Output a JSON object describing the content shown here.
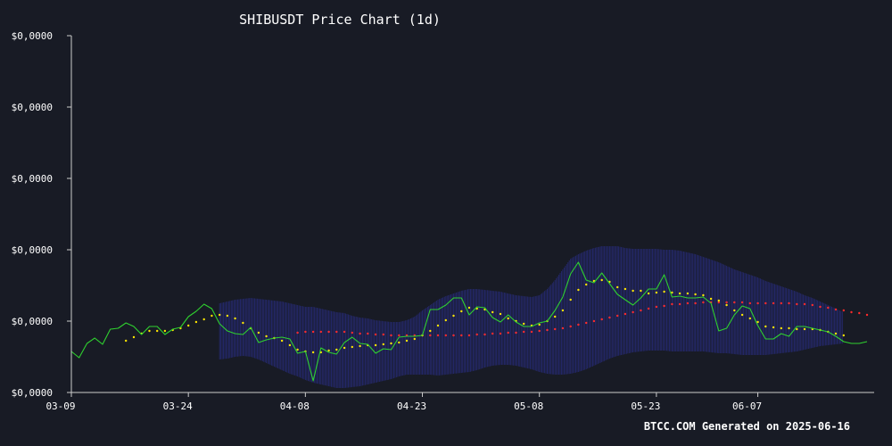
{
  "chart_data": {
    "type": "line",
    "title": "SHIBUSDT Price Chart (1d)",
    "footer": "BTCC.COM Generated on 2025-06-16",
    "xlabel": "",
    "ylabel": "",
    "x_ticks": [
      "03-09",
      "03-24",
      "04-08",
      "04-23",
      "05-08",
      "05-23",
      "06-07"
    ],
    "x_tick_indices": [
      0,
      15,
      30,
      45,
      60,
      75,
      88
    ],
    "y_tick_labels": [
      "$0,0000",
      "$0,0000",
      "$0,0000",
      "$0,0000",
      "$0,0000",
      "$0,0000"
    ],
    "y_ticks": [
      1.13e-05,
      1.21e-05,
      1.29e-05,
      1.37e-05,
      1.45e-05,
      1.53e-05
    ],
    "ylim": [
      1.13e-05,
      1.53e-05
    ],
    "grid": false,
    "colors": {
      "background": "#181b25",
      "price": "#2fd12f",
      "short_ma": "#ffe600",
      "long_ma": "#ff2b2b",
      "band": "#2a2f86",
      "axis": "#cccccc",
      "text": "#ffffff"
    },
    "series": [
      {
        "key": "price",
        "values": [
          1.176e-05,
          1.169e-05,
          1.185e-05,
          1.191e-05,
          1.184e-05,
          1.201e-05,
          1.202e-05,
          1.208e-05,
          1.204e-05,
          1.195e-05,
          1.204e-05,
          1.204e-05,
          1.195e-05,
          1.201e-05,
          1.203e-05,
          1.215e-05,
          1.221e-05,
          1.229e-05,
          1.224e-05,
          1.207e-05,
          1.199e-05,
          1.196e-05,
          1.195e-05,
          1.203e-05,
          1.186e-05,
          1.189e-05,
          1.191e-05,
          1.192e-05,
          1.19e-05,
          1.174e-05,
          1.176e-05,
          1.143e-05,
          1.18e-05,
          1.175e-05,
          1.173e-05,
          1.186e-05,
          1.192e-05,
          1.185e-05,
          1.184e-05,
          1.174e-05,
          1.179e-05,
          1.178e-05,
          1.192e-05,
          1.193e-05,
          1.193e-05,
          1.194e-05,
          1.223e-05,
          1.223e-05,
          1.228e-05,
          1.236e-05,
          1.236e-05,
          1.217e-05,
          1.226e-05,
          1.225e-05,
          1.214e-05,
          1.209e-05,
          1.217e-05,
          1.209e-05,
          1.204e-05,
          1.204e-05,
          1.208e-05,
          1.21e-05,
          1.222e-05,
          1.237e-05,
          1.263e-05,
          1.276e-05,
          1.256e-05,
          1.253e-05,
          1.264e-05,
          1.252e-05,
          1.24e-05,
          1.234e-05,
          1.228e-05,
          1.236e-05,
          1.246e-05,
          1.246e-05,
          1.262e-05,
          1.237e-05,
          1.238e-05,
          1.236e-05,
          1.236e-05,
          1.237e-05,
          1.23e-05,
          1.199e-05,
          1.202e-05,
          1.217e-05,
          1.227e-05,
          1.224e-05,
          1.205e-05,
          1.19e-05,
          1.19e-05,
          1.196e-05,
          1.193e-05,
          1.204e-05,
          1.204e-05,
          1.202e-05,
          1.2e-05,
          1.198e-05,
          1.193e-05,
          1.187e-05,
          1.185e-05,
          1.185e-05,
          1.187e-05
        ]
      },
      {
        "key": "short_ma",
        "values": [
          null,
          null,
          null,
          null,
          null,
          null,
          null,
          1.188e-05,
          1.192e-05,
          1.196e-05,
          1.199e-05,
          1.199e-05,
          1.199e-05,
          1.2e-05,
          1.202e-05,
          1.205e-05,
          1.209e-05,
          1.212e-05,
          1.216e-05,
          1.217e-05,
          1.216e-05,
          1.213e-05,
          1.208e-05,
          1.202e-05,
          1.197e-05,
          1.193e-05,
          1.191e-05,
          1.188e-05,
          1.183e-05,
          1.178e-05,
          1.176e-05,
          1.175e-05,
          1.175e-05,
          1.177e-05,
          1.178e-05,
          1.18e-05,
          1.181e-05,
          1.182e-05,
          1.183e-05,
          1.183e-05,
          1.184e-05,
          1.185e-05,
          1.186e-05,
          1.188e-05,
          1.19e-05,
          1.194e-05,
          1.199e-05,
          1.205e-05,
          1.211e-05,
          1.216e-05,
          1.221e-05,
          1.225e-05,
          1.224e-05,
          1.223e-05,
          1.22e-05,
          1.218e-05,
          1.213e-05,
          1.21e-05,
          1.207e-05,
          1.205e-05,
          1.206e-05,
          1.21e-05,
          1.215e-05,
          1.222e-05,
          1.234e-05,
          1.245e-05,
          1.251e-05,
          1.255e-05,
          1.256e-05,
          1.254e-05,
          1.248e-05,
          1.246e-05,
          1.244e-05,
          1.244e-05,
          1.241e-05,
          1.242e-05,
          1.243e-05,
          1.242e-05,
          1.241e-05,
          1.241e-05,
          1.24e-05,
          1.239e-05,
          1.235e-05,
          1.233e-05,
          1.228e-05,
          1.222e-05,
          1.217e-05,
          1.213e-05,
          1.209e-05,
          1.204e-05,
          1.203e-05,
          1.202e-05,
          1.202e-05,
          1.201e-05,
          1.201e-05,
          1.201e-05,
          1.2e-05,
          1.198e-05,
          1.196e-05,
          1.194e-05
        ]
      },
      {
        "key": "long_ma",
        "values": [
          null,
          null,
          null,
          null,
          null,
          null,
          null,
          null,
          null,
          null,
          null,
          null,
          null,
          null,
          null,
          null,
          null,
          null,
          null,
          null,
          null,
          null,
          null,
          null,
          null,
          null,
          null,
          null,
          null,
          1.197e-05,
          1.198e-05,
          1.198e-05,
          1.198e-05,
          1.198e-05,
          1.198e-05,
          1.198e-05,
          1.197e-05,
          1.196e-05,
          1.196e-05,
          1.195e-05,
          1.195e-05,
          1.194e-05,
          1.194e-05,
          1.194e-05,
          1.194e-05,
          1.194e-05,
          1.194e-05,
          1.194e-05,
          1.194e-05,
          1.194e-05,
          1.194e-05,
          1.194e-05,
          1.195e-05,
          1.195e-05,
          1.196e-05,
          1.196e-05,
          1.197e-05,
          1.197e-05,
          1.198e-05,
          1.198e-05,
          1.199e-05,
          1.2e-05,
          1.201e-05,
          1.202e-05,
          1.204e-05,
          1.206e-05,
          1.208e-05,
          1.21e-05,
          1.212e-05,
          1.214e-05,
          1.216e-05,
          1.218e-05,
          1.22e-05,
          1.222e-05,
          1.224e-05,
          1.226e-05,
          1.227e-05,
          1.229e-05,
          1.229e-05,
          1.23e-05,
          1.23e-05,
          1.231e-05,
          1.231e-05,
          1.231e-05,
          1.231e-05,
          1.231e-05,
          1.231e-05,
          1.23e-05,
          1.23e-05,
          1.23e-05,
          1.23e-05,
          1.23e-05,
          1.23e-05,
          1.229e-05,
          1.229e-05,
          1.228e-05,
          1.226e-05,
          1.225e-05,
          1.223e-05,
          1.222e-05,
          1.22e-05,
          1.219e-05,
          1.217e-05
        ]
      },
      {
        "key": "band_upper",
        "values": [
          null,
          null,
          null,
          null,
          null,
          null,
          null,
          null,
          null,
          null,
          null,
          null,
          null,
          null,
          null,
          null,
          null,
          null,
          null,
          1.23e-05,
          1.232e-05,
          1.234e-05,
          1.235e-05,
          1.236e-05,
          1.235e-05,
          1.234e-05,
          1.233e-05,
          1.232e-05,
          1.23e-05,
          1.228e-05,
          1.226e-05,
          1.226e-05,
          1.224e-05,
          1.222e-05,
          1.22e-05,
          1.219e-05,
          1.216e-05,
          1.214e-05,
          1.213e-05,
          1.211e-05,
          1.21e-05,
          1.209e-05,
          1.209e-05,
          1.211e-05,
          1.215e-05,
          1.222e-05,
          1.228e-05,
          1.234e-05,
          1.238e-05,
          1.241e-05,
          1.244e-05,
          1.246e-05,
          1.246e-05,
          1.245e-05,
          1.244e-05,
          1.243e-05,
          1.241e-05,
          1.239e-05,
          1.238e-05,
          1.237e-05,
          1.239e-05,
          1.246e-05,
          1.256e-05,
          1.268e-05,
          1.28e-05,
          1.285e-05,
          1.289e-05,
          1.292e-05,
          1.294e-05,
          1.294e-05,
          1.294e-05,
          1.292e-05,
          1.291e-05,
          1.291e-05,
          1.291e-05,
          1.291e-05,
          1.29e-05,
          1.29e-05,
          1.289e-05,
          1.287e-05,
          1.285e-05,
          1.282e-05,
          1.279e-05,
          1.276e-05,
          1.272e-05,
          1.268e-05,
          1.265e-05,
          1.262e-05,
          1.259e-05,
          1.255e-05,
          1.252e-05,
          1.249e-05,
          1.246e-05,
          1.243e-05,
          1.239e-05,
          1.236e-05,
          1.232e-05,
          1.228e-05,
          1.224e-05,
          1.22e-05
        ]
      },
      {
        "key": "band_lower",
        "values": [
          null,
          null,
          null,
          null,
          null,
          null,
          null,
          null,
          null,
          null,
          null,
          null,
          null,
          null,
          null,
          null,
          null,
          null,
          null,
          1.167e-05,
          1.168e-05,
          1.17e-05,
          1.171e-05,
          1.17e-05,
          1.167e-05,
          1.163e-05,
          1.159e-05,
          1.155e-05,
          1.151e-05,
          1.148e-05,
          1.144e-05,
          1.141e-05,
          1.139e-05,
          1.137e-05,
          1.135e-05,
          1.135e-05,
          1.136e-05,
          1.137e-05,
          1.139e-05,
          1.141e-05,
          1.143e-05,
          1.145e-05,
          1.148e-05,
          1.15e-05,
          1.15e-05,
          1.15e-05,
          1.15e-05,
          1.149e-05,
          1.15e-05,
          1.151e-05,
          1.152e-05,
          1.153e-05,
          1.155e-05,
          1.158e-05,
          1.16e-05,
          1.161e-05,
          1.161e-05,
          1.16e-05,
          1.158e-05,
          1.156e-05,
          1.153e-05,
          1.151e-05,
          1.15e-05,
          1.15e-05,
          1.151e-05,
          1.153e-05,
          1.156e-05,
          1.16e-05,
          1.164e-05,
          1.168e-05,
          1.171e-05,
          1.173e-05,
          1.175e-05,
          1.176e-05,
          1.177e-05,
          1.177e-05,
          1.177e-05,
          1.176e-05,
          1.176e-05,
          1.176e-05,
          1.176e-05,
          1.176e-05,
          1.175e-05,
          1.174e-05,
          1.174e-05,
          1.173e-05,
          1.172e-05,
          1.172e-05,
          1.172e-05,
          1.172e-05,
          1.173e-05,
          1.174e-05,
          1.175e-05,
          1.176e-05,
          1.178e-05,
          1.18e-05,
          1.182e-05,
          1.183e-05,
          1.184e-05,
          1.185e-05
        ]
      }
    ]
  }
}
